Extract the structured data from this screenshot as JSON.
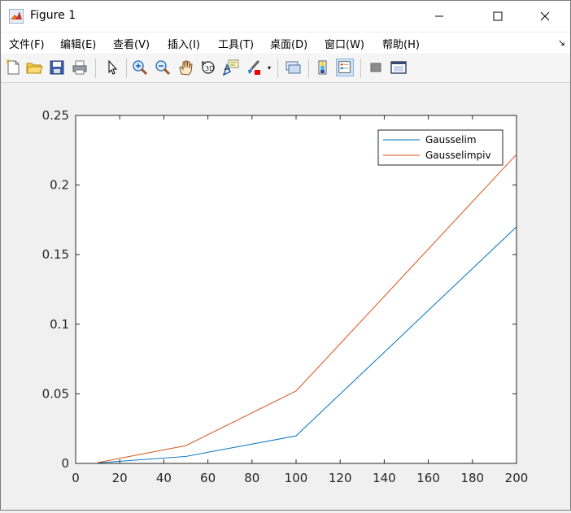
{
  "window": {
    "title": "Figure 1",
    "icon": "matlab-icon",
    "controls": [
      "minimize-icon",
      "maximize-icon",
      "close-icon"
    ]
  },
  "menu": {
    "items": [
      "文件(F)",
      "编辑(E)",
      "查看(V)",
      "插入(I)",
      "工具(T)",
      "桌面(D)",
      "窗口(W)",
      "帮助(H)"
    ],
    "overflow_icon": "dock-arrow-icon"
  },
  "toolbar": {
    "buttons": [
      {
        "name": "new-figure-icon"
      },
      {
        "name": "open-file-icon"
      },
      {
        "name": "save-icon"
      },
      {
        "name": "print-icon"
      },
      {
        "name": "pointer-icon"
      },
      {
        "name": "zoom-in-icon"
      },
      {
        "name": "zoom-out-icon"
      },
      {
        "name": "pan-icon"
      },
      {
        "name": "rotate-3d-icon"
      },
      {
        "name": "data-cursor-icon"
      },
      {
        "name": "brush-icon"
      },
      {
        "name": "link-plot-icon"
      },
      {
        "name": "colorbar-icon"
      },
      {
        "name": "legend-icon",
        "pressed": true
      },
      {
        "name": "hide-tools-icon"
      },
      {
        "name": "show-tools-icon"
      }
    ]
  },
  "chart_data": {
    "type": "line",
    "title": "",
    "xlabel": "",
    "ylabel": "",
    "xlim": [
      0,
      200
    ],
    "ylim": [
      0,
      0.25
    ],
    "xticks": [
      0,
      20,
      40,
      60,
      80,
      100,
      120,
      140,
      160,
      180,
      200
    ],
    "xtick_labels": [
      "0",
      "20",
      "40",
      "60",
      "80",
      "100",
      "120",
      "140",
      "160",
      "180",
      "200"
    ],
    "yticks": [
      0,
      0.05,
      0.1,
      0.15,
      0.2,
      0.25
    ],
    "ytick_labels": [
      "0",
      "0.05",
      "0.1",
      "0.15",
      "0.2",
      "0.25"
    ],
    "grid": false,
    "legend_position": "top-right",
    "series": [
      {
        "name": "Gausselim",
        "color": "#0072bd",
        "x": [
          10,
          50,
          100,
          200
        ],
        "y": [
          0.0004,
          0.005,
          0.0198,
          0.17
        ]
      },
      {
        "name": "Gausselimpiv",
        "color": "#d95319",
        "x": [
          10,
          50,
          100,
          200
        ],
        "y": [
          0.0006,
          0.0128,
          0.052,
          0.222
        ]
      }
    ]
  }
}
